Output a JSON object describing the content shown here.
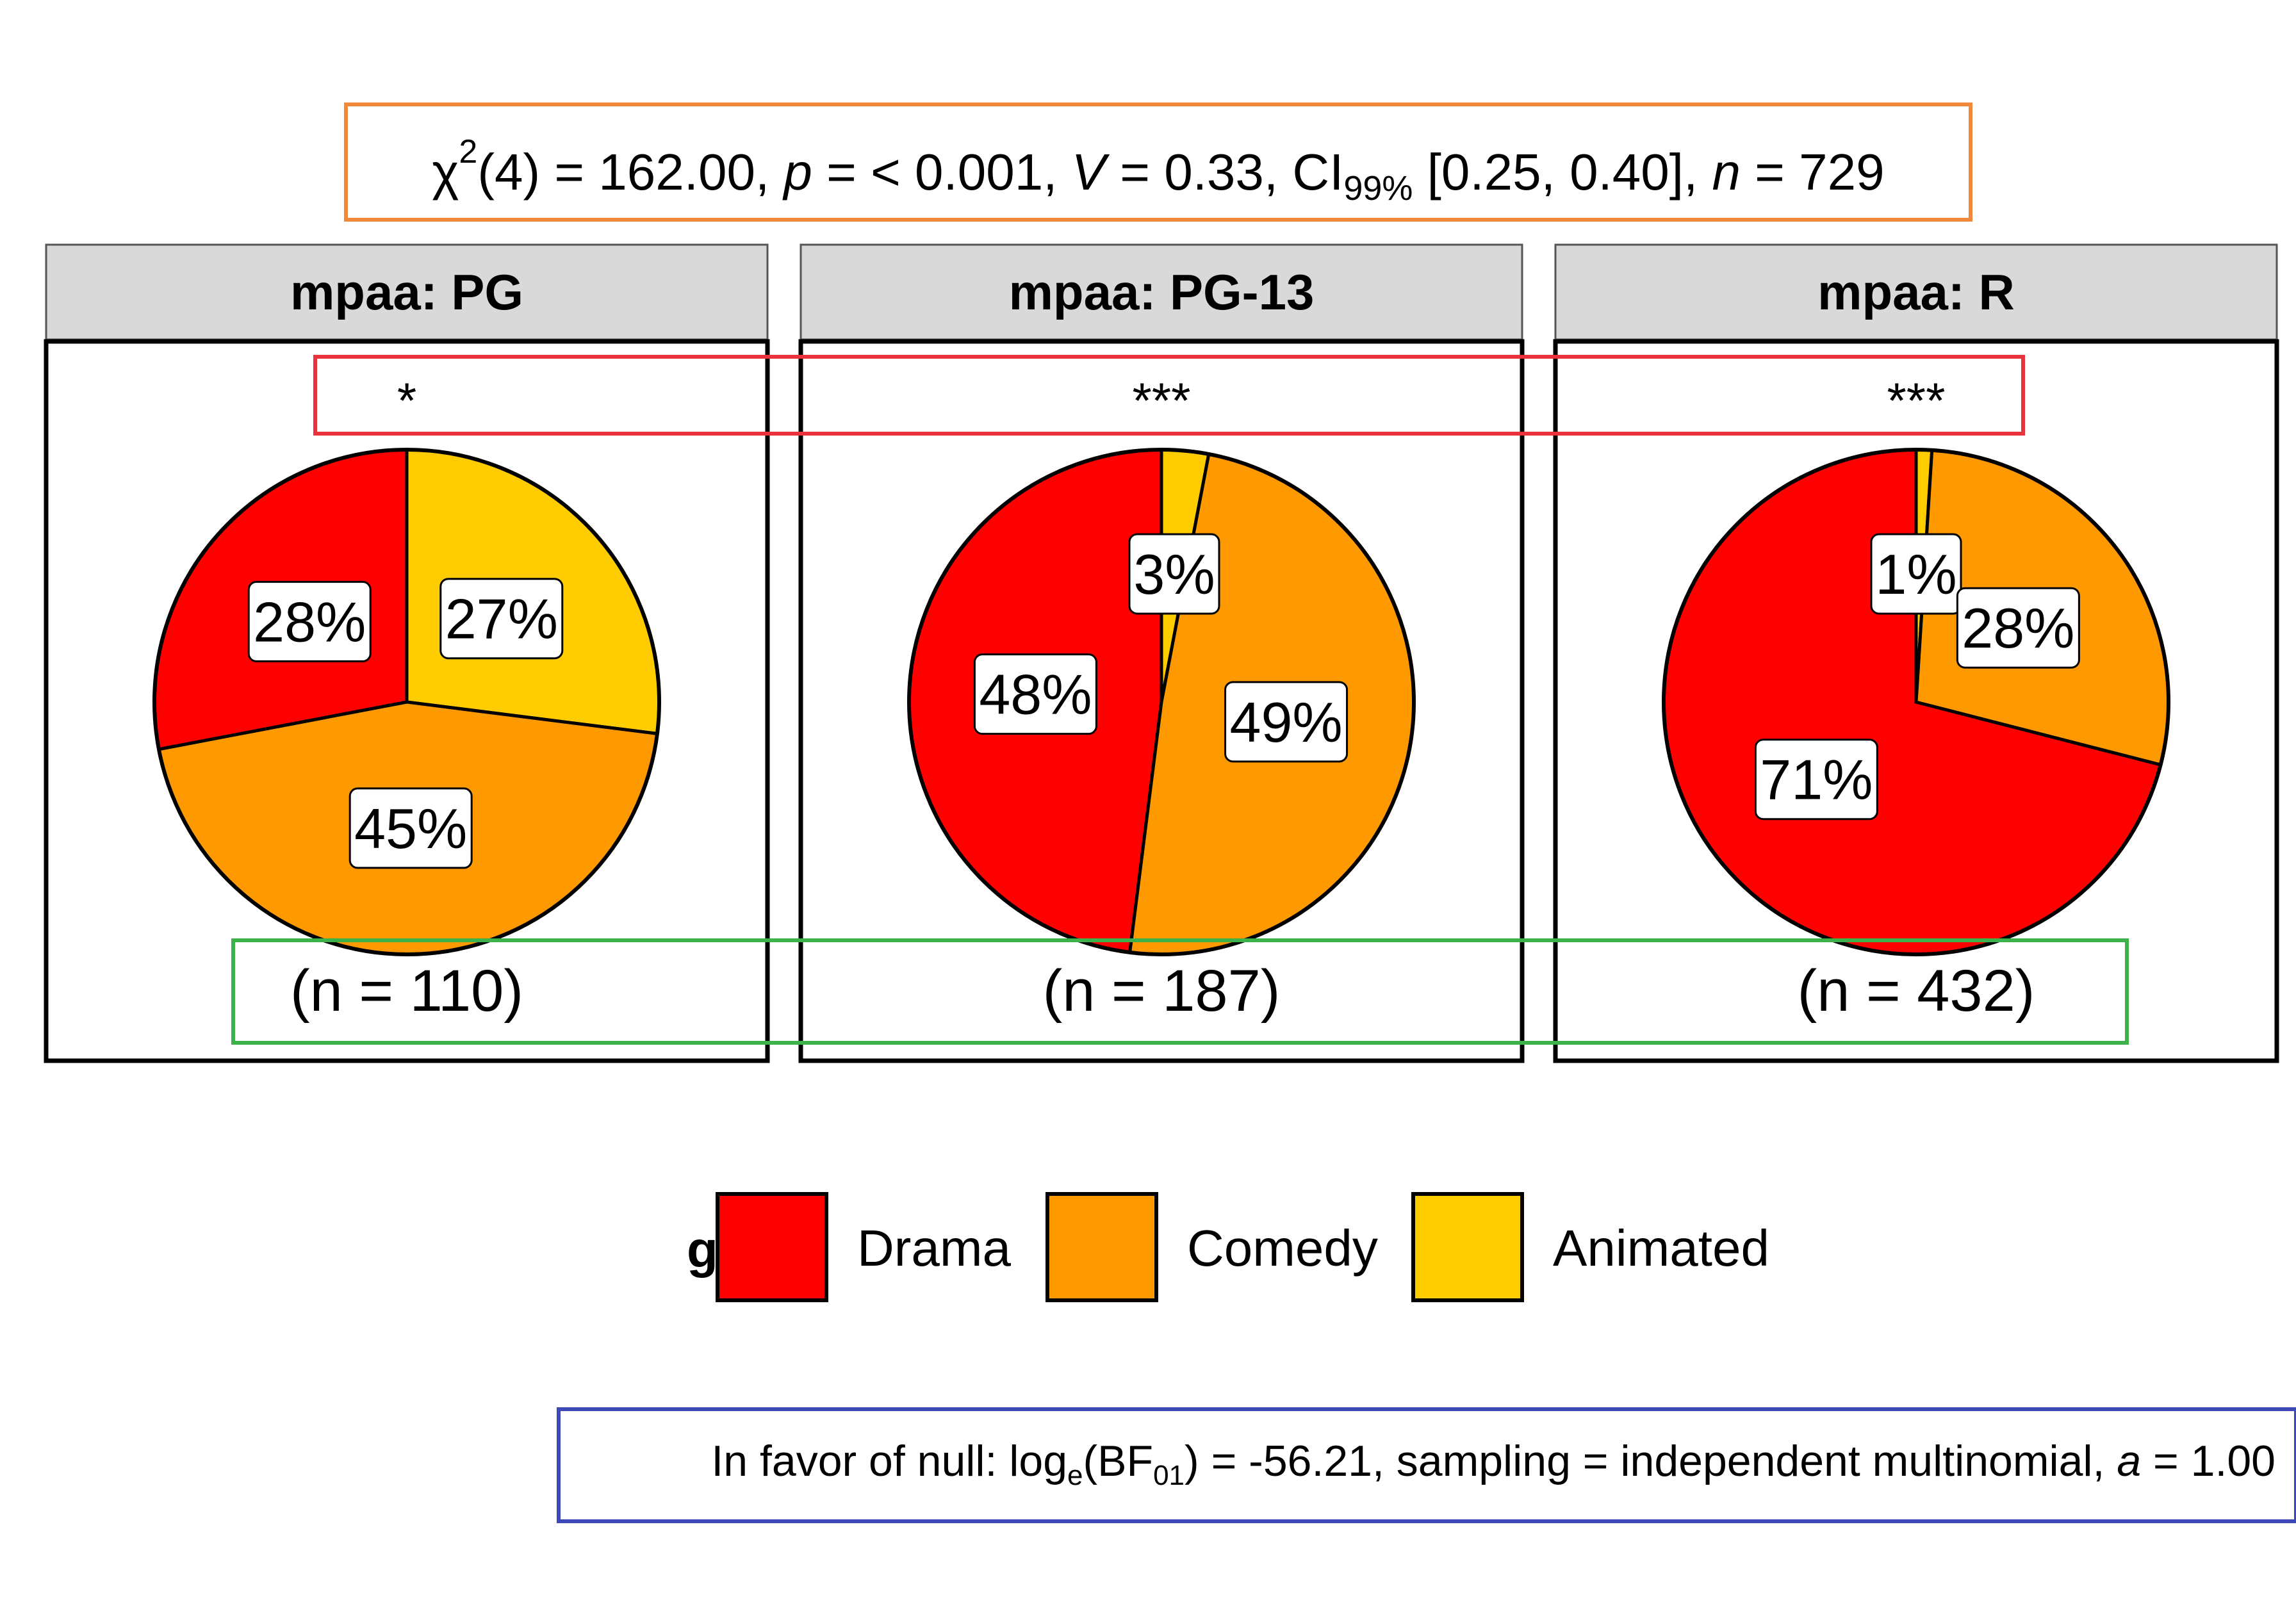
{
  "subtitle": {
    "stat_open": "χ",
    "stat_sup": "2",
    "stat_df": "(4) = 162.00, ",
    "p_symbol": "p",
    "p_value": " = < 0.001, ",
    "v_symbol": "V",
    "v_value": " = 0.33, CI",
    "ci_sub": "99%",
    "ci_value": " [0.25, 0.40], ",
    "n_symbol": "n",
    "n_value": " = 729"
  },
  "caption": {
    "prefix": "In favor of null: log",
    "log_sub": "e",
    "bf_open": "(BF",
    "bf_sub": "01",
    "rest": ") = -56.21, sampling = independent multinomial, ",
    "a_symbol": "a",
    "a_value": " = 1.00"
  },
  "colors": {
    "Drama": "#FF0000",
    "Comedy": "#FF9900",
    "Animated": "#FFCC00",
    "strip_bg": "#D9D9D9",
    "box_subtitle": "#F08A3A",
    "box_sig": "#E8323C",
    "box_n": "#3DB24B",
    "box_caption": "#3E48B8"
  },
  "chart_data": {
    "type": "pie",
    "facet_variable": "mpaa",
    "fill_variable": "genre",
    "categories": [
      "Drama",
      "Comedy",
      "Animated"
    ],
    "panels": [
      {
        "strip": "mpaa: PG",
        "significance": "*",
        "n_label": "(n = 110)",
        "slices": [
          {
            "category": "Drama",
            "value": 28,
            "label": "28%"
          },
          {
            "category": "Comedy",
            "value": 45,
            "label": "45%"
          },
          {
            "category": "Animated",
            "value": 27,
            "label": "27%"
          }
        ]
      },
      {
        "strip": "mpaa: PG-13",
        "significance": "***",
        "n_label": "(n = 187)",
        "slices": [
          {
            "category": "Drama",
            "value": 48,
            "label": "48%"
          },
          {
            "category": "Comedy",
            "value": 49,
            "label": "49%"
          },
          {
            "category": "Animated",
            "value": 3,
            "label": "3%"
          }
        ]
      },
      {
        "strip": "mpaa: R",
        "significance": "***",
        "n_label": "(n = 432)",
        "slices": [
          {
            "category": "Drama",
            "value": 71,
            "label": "71%"
          },
          {
            "category": "Comedy",
            "value": 28,
            "label": "28%"
          },
          {
            "category": "Animated",
            "value": 1,
            "label": "1%"
          }
        ]
      }
    ],
    "legend": {
      "title": "genre",
      "position": "bottom",
      "entries": [
        "Drama",
        "Comedy",
        "Animated"
      ]
    }
  }
}
